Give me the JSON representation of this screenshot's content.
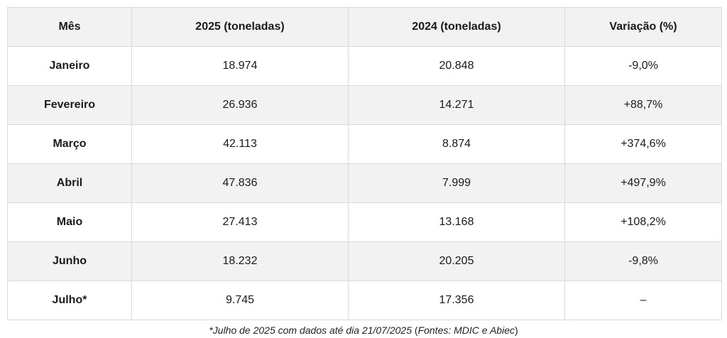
{
  "table": {
    "headers": [
      "Mês",
      "2025 (toneladas)",
      "2024 (toneladas)",
      "Variação (%)"
    ],
    "rows": [
      {
        "month": "Janeiro",
        "y2025": "18.974",
        "y2024": "20.848",
        "variation": "-9,0%"
      },
      {
        "month": "Fevereiro",
        "y2025": "26.936",
        "y2024": "14.271",
        "variation": "+88,7%"
      },
      {
        "month": "Março",
        "y2025": "42.113",
        "y2024": "8.874",
        "variation": "+374,6%"
      },
      {
        "month": "Abril",
        "y2025": "47.836",
        "y2024": "7.999",
        "variation": "+497,9%"
      },
      {
        "month": "Maio",
        "y2025": "27.413",
        "y2024": "13.168",
        "variation": "+108,2%"
      },
      {
        "month": "Junho",
        "y2025": "18.232",
        "y2024": "20.205",
        "variation": "-9,8%"
      },
      {
        "month": "Julho*",
        "y2025": "9.745",
        "y2024": "17.356",
        "variation": "–"
      }
    ]
  },
  "footnote": {
    "note": "*Julho de 2025 com dados até dia 21/07/2025",
    "sources_open": "(",
    "sources": "Fontes: MDIC e Abiec",
    "sources_close": ")"
  }
}
